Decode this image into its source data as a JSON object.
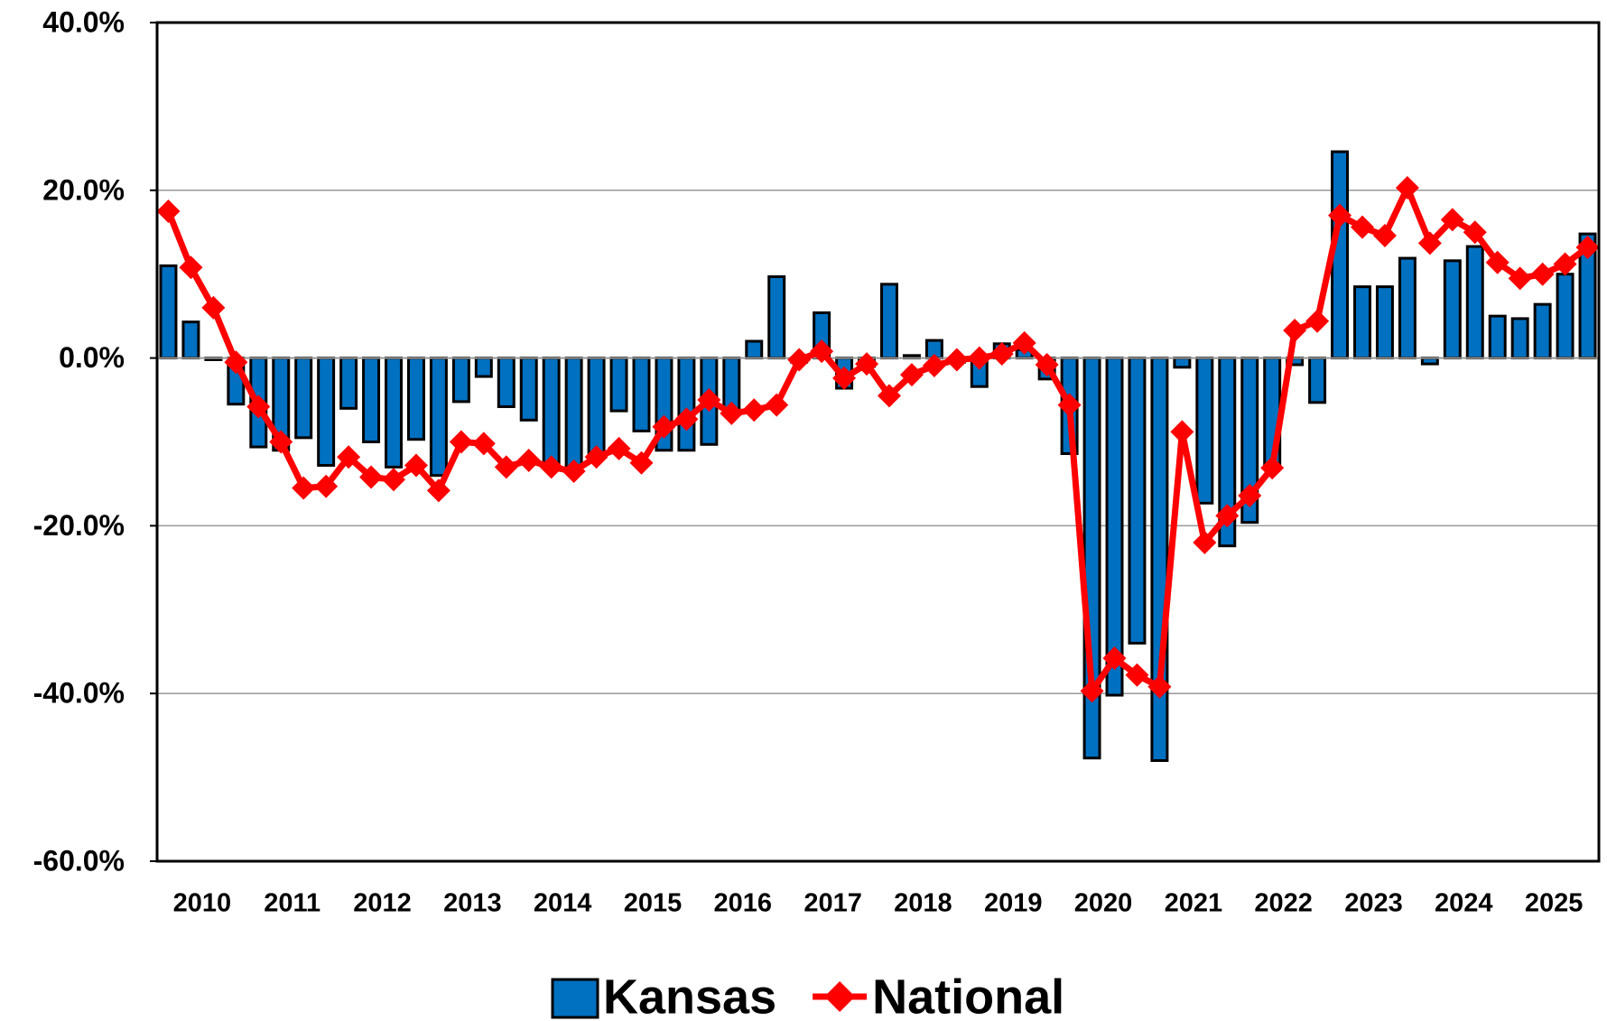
{
  "chart_data": {
    "type": "bar_line",
    "categories": [
      "2010",
      null,
      null,
      null,
      "2011",
      null,
      null,
      null,
      "2012",
      null,
      null,
      null,
      "2013",
      null,
      null,
      null,
      "2014",
      null,
      null,
      null,
      "2015",
      null,
      null,
      null,
      "2016",
      null,
      null,
      null,
      "2017",
      null,
      null,
      null,
      "2018",
      null,
      null,
      null,
      "2019",
      null,
      null,
      null,
      "2020",
      null,
      null,
      null,
      "2021",
      null,
      null,
      null,
      "2022",
      null,
      null,
      null,
      "2023",
      null,
      null,
      null,
      "2024",
      null,
      null,
      null,
      "2025",
      null,
      null,
      null
    ],
    "series": [
      {
        "name": "Kansas",
        "type": "bar",
        "color": "#0070c0",
        "values": [
          11,
          4.3,
          -0.2,
          -5.5,
          -10.6,
          -11,
          -9.5,
          -12.8,
          -6,
          -10,
          -13,
          -9.7,
          -14,
          -5.2,
          -2.2,
          -5.8,
          -7.4,
          -12.5,
          -13,
          -11.5,
          -6.3,
          -8.7,
          -11,
          -11,
          -10.3,
          -6.5,
          2,
          9.7,
          -0.5,
          5.4,
          -3.6,
          -1,
          8.8,
          0.3,
          2.1,
          -0.5,
          -3.4,
          1.7,
          1,
          -2.5,
          -11.4,
          -47.7,
          -40.2,
          -34,
          -48,
          -1.1,
          -17.3,
          -22.4,
          -19.6,
          -13,
          -0.8,
          -5.3,
          24.6,
          8.5,
          8.5,
          11.9,
          -0.7,
          11.6,
          13.3,
          5,
          4.7,
          6.4,
          10,
          14.8
        ]
      },
      {
        "name": "National",
        "type": "line",
        "color": "#ff0000",
        "values": [
          17.5,
          10.8,
          6,
          -0.5,
          -5.8,
          -10,
          -15.5,
          -15.3,
          -11.8,
          -14.2,
          -14.5,
          -12.8,
          -15.8,
          -10,
          -10.2,
          -13,
          -12.2,
          -13,
          -13.5,
          -11.8,
          -10.8,
          -12.5,
          -8.2,
          -7.3,
          -5,
          -6.6,
          -6.2,
          -5.6,
          -0.2,
          0.8,
          -2.4,
          -0.7,
          -4.5,
          -2,
          -0.9,
          -0.2,
          0,
          0.5,
          1.8,
          -0.8,
          -5.6,
          -39.7,
          -35.8,
          -37.8,
          -39.2,
          -8.8,
          -22,
          -18.8,
          -16.4,
          -13.1,
          3.3,
          4.4,
          17,
          15.6,
          14.6,
          20.3,
          13.7,
          16.5,
          15,
          11.4,
          9.5,
          10,
          11.2,
          13.2
        ]
      }
    ],
    "ylim": [
      -60,
      40
    ],
    "yticks": [
      {
        "value": -60,
        "label": "-60.0%"
      },
      {
        "value": -40,
        "label": "-40.0%"
      },
      {
        "value": -20,
        "label": "-20.0%"
      },
      {
        "value": 0,
        "label": "0.0%"
      },
      {
        "value": 20,
        "label": "20.0%"
      },
      {
        "value": 40,
        "label": "40.0%"
      }
    ],
    "grid": true,
    "legend": "bottom"
  }
}
